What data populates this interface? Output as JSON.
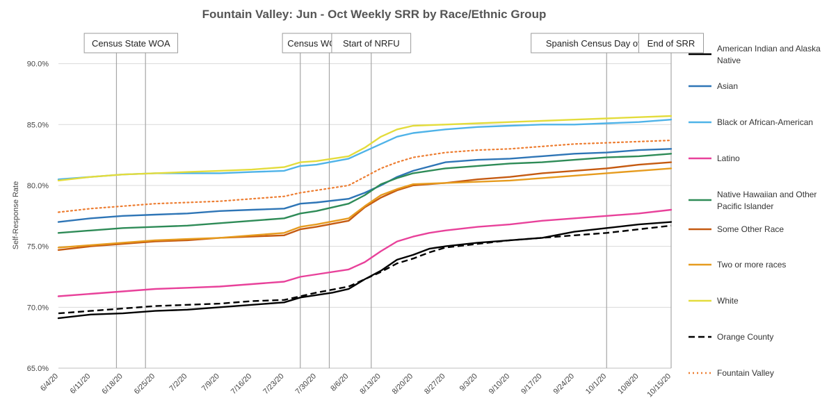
{
  "chart_data": {
    "type": "line",
    "title": "Fountain Valley: Jun - Oct Weekly SRR by Race/Ethnic Group",
    "xlabel": "",
    "ylabel": "Self-Response Rate",
    "ylim": [
      65,
      91.8
    ],
    "yticks": [
      "65.0%",
      "70.0%",
      "75.0%",
      "80.0%",
      "85.0%",
      "90.0%"
    ],
    "ytick_values": [
      65,
      70,
      75,
      80,
      85,
      90
    ],
    "x_range": [
      0,
      19
    ],
    "xticks": [
      "6/4/20",
      "6/11/20",
      "6/18/20",
      "6/25/20",
      "7/2/20",
      "7/9/20",
      "7/16/20",
      "7/23/20",
      "7/30/20",
      "8/6/20",
      "8/13/20",
      "8/20/20",
      "8/27/20",
      "9/3/20",
      "9/10/20",
      "9/17/20",
      "9/24/20",
      "10/1/20",
      "10/8/20",
      "10/15/20"
    ],
    "events": [
      {
        "label": "Census State WOA",
        "x": [
          1.8,
          2.7
        ]
      },
      {
        "label": "Census WOA",
        "x": [
          7.5,
          8.4
        ]
      },
      {
        "label": "Start of NRFU",
        "x": [
          9.7
        ]
      },
      {
        "label": "Spanish Census Day of Action",
        "x": [
          17.0
        ]
      },
      {
        "label": "End of SRR",
        "x": [
          19.0
        ]
      }
    ],
    "series": [
      {
        "name": "American Indian and Alaska Native",
        "color": "#000000",
        "style": "solid",
        "x": [
          0,
          1,
          2,
          3,
          4,
          5,
          6,
          7,
          7.5,
          8,
          8.5,
          9,
          9.5,
          10,
          10.5,
          11,
          11.5,
          12,
          13,
          14,
          15,
          16,
          17,
          18,
          19
        ],
        "y": [
          69.1,
          69.4,
          69.5,
          69.7,
          69.8,
          70.0,
          70.2,
          70.4,
          70.8,
          71.0,
          71.2,
          71.5,
          72.3,
          73.0,
          73.9,
          74.3,
          74.8,
          75.0,
          75.3,
          75.5,
          75.7,
          76.2,
          76.5,
          76.8,
          77.0
        ]
      },
      {
        "name": "Asian",
        "color": "#2E75B6",
        "style": "solid",
        "x": [
          0,
          1,
          2,
          3,
          4,
          5,
          6,
          7,
          7.5,
          8,
          9,
          9.5,
          10,
          10.5,
          11,
          12,
          13,
          14,
          15,
          16,
          17,
          18,
          19
        ],
        "y": [
          77.0,
          77.3,
          77.5,
          77.6,
          77.7,
          77.9,
          78.0,
          78.1,
          78.5,
          78.6,
          78.9,
          79.4,
          80.0,
          80.7,
          81.2,
          81.9,
          82.1,
          82.2,
          82.4,
          82.6,
          82.7,
          82.9,
          83.0
        ]
      },
      {
        "name": "Black or African-American",
        "color": "#4FB3E8",
        "style": "solid",
        "x": [
          0,
          1,
          2,
          3,
          4,
          5,
          6,
          7,
          7.5,
          8,
          9,
          9.5,
          10,
          10.5,
          11,
          12,
          13,
          14,
          15,
          16,
          17,
          18,
          19
        ],
        "y": [
          80.5,
          80.7,
          80.9,
          81.0,
          81.0,
          81.0,
          81.1,
          81.2,
          81.6,
          81.7,
          82.2,
          82.8,
          83.4,
          84.0,
          84.3,
          84.6,
          84.8,
          84.9,
          85.0,
          85.0,
          85.1,
          85.2,
          85.4
        ]
      },
      {
        "name": "Latino",
        "color": "#E8419A",
        "style": "solid",
        "x": [
          0,
          1,
          2,
          3,
          4,
          5,
          6,
          7,
          7.5,
          8,
          9,
          9.5,
          10,
          10.5,
          11,
          11.5,
          12,
          13,
          14,
          15,
          16,
          17,
          18,
          19
        ],
        "y": [
          70.9,
          71.1,
          71.3,
          71.5,
          71.6,
          71.7,
          71.9,
          72.1,
          72.5,
          72.7,
          73.1,
          73.7,
          74.6,
          75.4,
          75.8,
          76.1,
          76.3,
          76.6,
          76.8,
          77.1,
          77.3,
          77.5,
          77.7,
          78.0
        ]
      },
      {
        "name": "Native Hawaiian and Other Pacific Islander",
        "color": "#2E8B57",
        "style": "solid",
        "x": [
          0,
          1,
          2,
          3,
          4,
          5,
          6,
          7,
          7.5,
          8,
          9,
          9.5,
          10,
          10.5,
          11,
          12,
          13,
          14,
          15,
          16,
          17,
          18,
          19
        ],
        "y": [
          76.1,
          76.3,
          76.5,
          76.6,
          76.7,
          76.9,
          77.1,
          77.3,
          77.7,
          77.9,
          78.5,
          79.2,
          80.1,
          80.6,
          81.0,
          81.4,
          81.6,
          81.8,
          81.9,
          82.1,
          82.3,
          82.4,
          82.6
        ]
      },
      {
        "name": "Some Other Race",
        "color": "#C55A11",
        "style": "solid",
        "x": [
          0,
          1,
          2,
          3,
          4,
          5,
          6,
          7,
          7.5,
          8,
          9,
          9.5,
          10,
          10.5,
          11,
          12,
          13,
          14,
          15,
          16,
          17,
          18,
          19
        ],
        "y": [
          74.7,
          75.0,
          75.2,
          75.4,
          75.5,
          75.7,
          75.8,
          75.9,
          76.4,
          76.6,
          77.1,
          78.2,
          79.0,
          79.6,
          80.0,
          80.2,
          80.5,
          80.7,
          81.0,
          81.2,
          81.4,
          81.7,
          81.9
        ]
      },
      {
        "name": "Two or more races",
        "color": "#E69B1E",
        "style": "solid",
        "x": [
          0,
          1,
          2,
          3,
          4,
          5,
          6,
          7,
          7.5,
          8,
          9,
          9.5,
          10,
          10.5,
          11,
          12,
          13,
          14,
          15,
          16,
          17,
          18,
          19
        ],
        "y": [
          74.9,
          75.1,
          75.3,
          75.5,
          75.6,
          75.7,
          75.9,
          76.1,
          76.6,
          76.8,
          77.3,
          78.3,
          79.2,
          79.7,
          80.1,
          80.2,
          80.3,
          80.4,
          80.6,
          80.8,
          81.0,
          81.2,
          81.4
        ]
      },
      {
        "name": "White",
        "color": "#E3DC3C",
        "style": "solid",
        "x": [
          0,
          1,
          2,
          3,
          4,
          5,
          6,
          7,
          7.5,
          8,
          9,
          9.5,
          10,
          10.5,
          11,
          12,
          13,
          14,
          15,
          16,
          17,
          18,
          19
        ],
        "y": [
          80.4,
          80.7,
          80.9,
          81.0,
          81.1,
          81.2,
          81.3,
          81.5,
          81.9,
          82.0,
          82.4,
          83.1,
          84.0,
          84.6,
          84.9,
          85.0,
          85.1,
          85.2,
          85.3,
          85.4,
          85.5,
          85.6,
          85.7
        ]
      },
      {
        "name": "Orange County",
        "color": "#000000",
        "style": "dashed",
        "x": [
          0,
          1,
          2,
          3,
          4,
          5,
          6,
          7,
          7.5,
          8,
          9,
          9.5,
          10,
          10.5,
          11,
          11.5,
          12,
          13,
          14,
          15,
          16,
          17,
          18,
          19
        ],
        "y": [
          69.5,
          69.7,
          69.9,
          70.1,
          70.2,
          70.3,
          70.5,
          70.6,
          70.9,
          71.2,
          71.7,
          72.3,
          72.9,
          73.6,
          74.0,
          74.5,
          74.9,
          75.2,
          75.5,
          75.7,
          75.9,
          76.1,
          76.4,
          76.7
        ]
      },
      {
        "name": "Fountain Valley",
        "color": "#ED7D31",
        "style": "dotted",
        "x": [
          0,
          1,
          2,
          3,
          4,
          5,
          6,
          7,
          7.5,
          8,
          9,
          9.5,
          10,
          10.5,
          11,
          12,
          13,
          14,
          15,
          16,
          17,
          18,
          19
        ],
        "y": [
          77.8,
          78.1,
          78.3,
          78.5,
          78.6,
          78.7,
          78.9,
          79.1,
          79.4,
          79.6,
          80.0,
          80.7,
          81.4,
          81.9,
          82.3,
          82.7,
          82.9,
          83.0,
          83.2,
          83.4,
          83.5,
          83.6,
          83.7
        ]
      }
    ]
  }
}
